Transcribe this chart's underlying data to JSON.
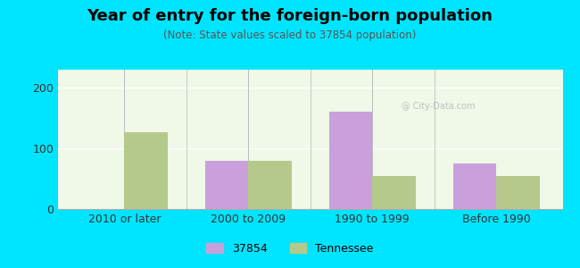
{
  "title": "Year of entry for the foreign-born population",
  "subtitle": "(Note: State values scaled to 37854 population)",
  "categories": [
    "2010 or later",
    "2000 to 2009",
    "1990 to 1999",
    "Before 1990"
  ],
  "values_37854": [
    0,
    80,
    160,
    75
  ],
  "values_tennessee": [
    127,
    80,
    55,
    55
  ],
  "bar_color_37854": "#c9a0dc",
  "bar_color_tennessee": "#b5c98a",
  "background_outer": "#00e5ff",
  "background_inner": "#f0f8e8",
  "ylim": [
    0,
    230
  ],
  "yticks": [
    0,
    100,
    200
  ],
  "bar_width": 0.35,
  "legend_label_1": "37854",
  "legend_label_2": "Tennessee"
}
